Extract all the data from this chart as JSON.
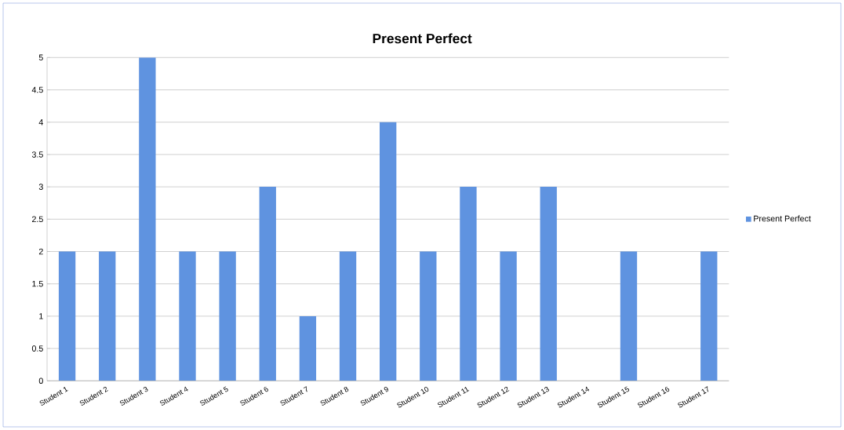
{
  "chart_data": {
    "type": "bar",
    "title": "Present Perfect",
    "categories": [
      "Student 1",
      "Student 2",
      "Student 3",
      "Student 4",
      "Student 5",
      "Student 6",
      "Student 7",
      "Student 8",
      "Student 9",
      "Student 10",
      "Student 11",
      "Student 12",
      "Student 13",
      "Student 14",
      "Student 15",
      "Student 16",
      "Student 17"
    ],
    "series": [
      {
        "name": "Present Perfect",
        "color": "#5f93e0",
        "values": [
          2,
          2,
          5,
          2,
          2,
          3,
          1,
          2,
          4,
          2,
          3,
          2,
          3,
          0,
          2,
          0,
          2
        ]
      }
    ],
    "ylim": [
      0,
      5
    ],
    "yticks": [
      0,
      0.5,
      1,
      1.5,
      2,
      2.5,
      3,
      3.5,
      4,
      4.5,
      5
    ],
    "grid": "y",
    "legend": "right"
  }
}
